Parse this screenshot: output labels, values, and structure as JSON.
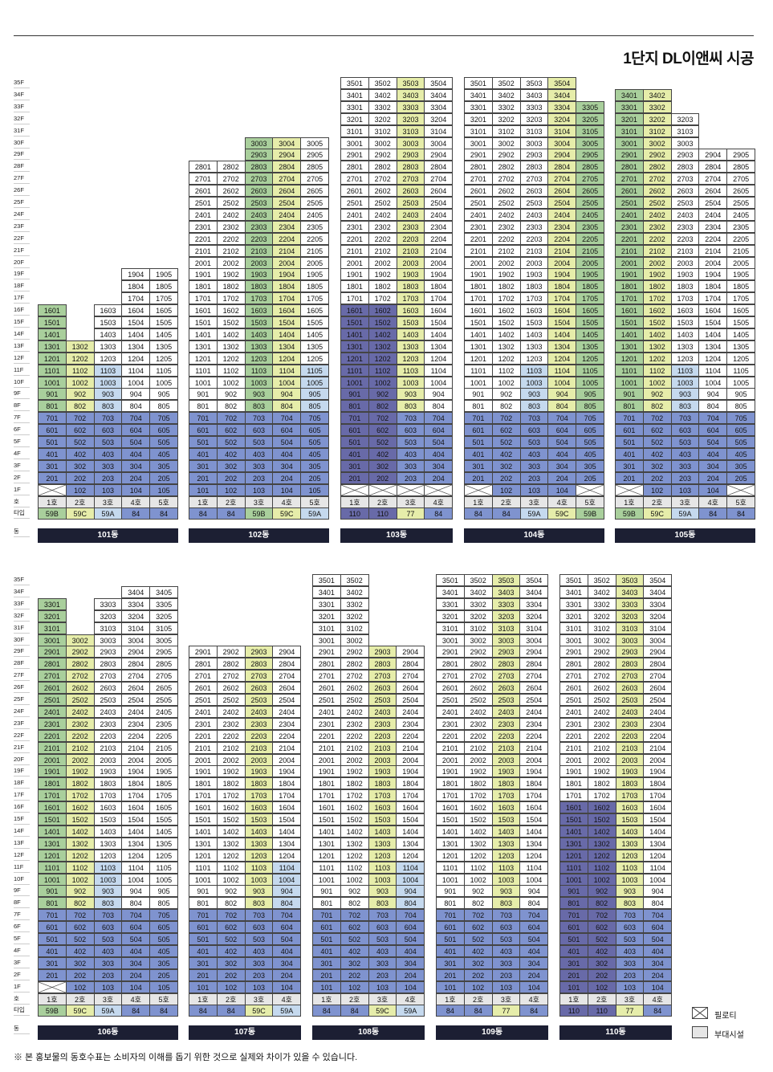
{
  "title": "1단지 DL이앤씨 시공",
  "floors_label": [
    "35F",
    "34F",
    "33F",
    "32F",
    "31F",
    "30F",
    "29F",
    "28F",
    "27F",
    "26F",
    "25F",
    "24F",
    "23F",
    "22F",
    "21F",
    "20F",
    "19F",
    "18F",
    "17F",
    "16F",
    "15F",
    "14F",
    "13F",
    "12F",
    "11F",
    "10F",
    "9F",
    "8F",
    "7F",
    "6F",
    "5F",
    "4F",
    "3F",
    "2F",
    "1F"
  ],
  "row_labels": {
    "ho": "호",
    "type": "타입",
    "dong": "동"
  },
  "sections": [
    {
      "name": "top",
      "buildings": [
        {
          "dong": "101동",
          "lines": 5,
          "lines_data": [
            {
              "ho": "1호",
              "type": "59B",
              "top": 16,
              "colors": {
                "default": "g",
                "1-7": "mb",
                "pil": [
                  1
                ]
              }
            },
            {
              "ho": "2호",
              "type": "59C",
              "top": 13,
              "colors": {
                "default": "w",
                "1-7": "mb"
              }
            },
            {
              "ho": "3호",
              "type": "59A",
              "top": 16,
              "colors": {
                "default": "w",
                "1-10": "lb"
              }
            },
            {
              "ho": "4호",
              "type": "84",
              "top": 19,
              "colors": {
                "default": "w",
                "1-7": "mb"
              }
            },
            {
              "ho": "5호",
              "type": "84",
              "top": 19,
              "colors": {
                "default": "w",
                "1-7": "mb"
              }
            }
          ],
          "dong_label": "101동"
        },
        {
          "dong": "102동",
          "dong_label": "102동"
        },
        {
          "dong": "103동",
          "dong_label": "103동"
        },
        {
          "dong": "104동",
          "dong_label": "104동"
        },
        {
          "dong": "105동",
          "dong_label": "105동"
        }
      ]
    },
    {
      "name": "bottom",
      "buildings": [
        {
          "dong_label": "106동"
        },
        {
          "dong_label": "107동"
        },
        {
          "dong_label": "108동"
        },
        {
          "dong_label": "109동"
        },
        {
          "dong_label": "110동"
        }
      ]
    }
  ],
  "buildings": [
    {
      "id": "101",
      "label": "101동",
      "ho": [
        "1호",
        "2호",
        "3호",
        "4호",
        "5호"
      ],
      "types": [
        "59B",
        "59C",
        "59A",
        "84",
        "84"
      ],
      "type_colors": [
        "g",
        "y",
        "lb",
        "mb",
        "mb"
      ],
      "tops": [
        16,
        13,
        16,
        19,
        19
      ],
      "pil": [
        1,
        0,
        0,
        0,
        0
      ],
      "mb_max": [
        7,
        7,
        7,
        7,
        7
      ],
      "mb_cols": [
        1,
        1,
        0,
        1,
        1
      ],
      "lb_cols": [
        0,
        0,
        1,
        0,
        0
      ],
      "lb_max": 10,
      "g_cols": [
        1,
        0,
        0,
        0,
        0
      ],
      "y_cols": [
        0,
        1,
        0,
        0,
        0
      ]
    },
    {
      "id": "102",
      "label": "102동",
      "ho": [
        "1호",
        "2호",
        "3호",
        "4호",
        "5호"
      ],
      "types": [
        "84",
        "84",
        "59B",
        "59C",
        "59A"
      ],
      "type_colors": [
        "mb",
        "mb",
        "g",
        "y",
        "lb"
      ],
      "tops": [
        28,
        28,
        30,
        30,
        30
      ],
      "pil": [
        0,
        0,
        0,
        0,
        0
      ]
    },
    {
      "id": "103",
      "label": "103동",
      "ho": [
        "1호",
        "2호",
        "3호",
        "4호"
      ],
      "types": [
        "110",
        "110",
        "77",
        "84"
      ],
      "type_colors": [
        "db",
        "db",
        "y",
        "mb"
      ],
      "tops": [
        35,
        35,
        35,
        35
      ],
      "pil": [
        1,
        1,
        1,
        1
      ]
    },
    {
      "id": "104",
      "label": "104동",
      "ho": [
        "1호",
        "2호",
        "3호",
        "4호",
        "5호"
      ],
      "types": [
        "84",
        "84",
        "59A",
        "59C",
        "59B"
      ],
      "type_colors": [
        "mb",
        "mb",
        "lb",
        "y",
        "g"
      ],
      "tops": [
        35,
        35,
        35,
        35,
        33
      ],
      "pil": [
        1,
        0,
        0,
        0,
        1
      ]
    },
    {
      "id": "105",
      "label": "105동",
      "ho": [
        "1호",
        "2호",
        "3호",
        "4호",
        "5호"
      ],
      "types": [
        "59B",
        "59C",
        "59A",
        "84",
        "84"
      ],
      "type_colors": [
        "g",
        "y",
        "lb",
        "mb",
        "mb"
      ],
      "tops": [
        34,
        34,
        32,
        29,
        29
      ],
      "pil": [
        1,
        0,
        0,
        0,
        1
      ]
    },
    {
      "id": "106",
      "label": "106동",
      "ho": [
        "1호",
        "2호",
        "3호",
        "4호",
        "5호"
      ],
      "types": [
        "59B",
        "59C",
        "59A",
        "84",
        "84"
      ],
      "type_colors": [
        "g",
        "y",
        "lb",
        "mb",
        "mb"
      ],
      "tops": [
        33,
        30,
        33,
        34,
        34
      ],
      "pil": [
        1,
        0,
        0,
        0,
        0
      ]
    },
    {
      "id": "107",
      "label": "107동",
      "ho": [
        "1호",
        "2호",
        "3호",
        "4호"
      ],
      "types": [
        "84",
        "84",
        "59C",
        "59A"
      ],
      "type_colors": [
        "mb",
        "mb",
        "y",
        "lb"
      ],
      "tops": [
        29,
        29,
        29,
        29
      ],
      "pil": [
        0,
        0,
        0,
        0
      ]
    },
    {
      "id": "108",
      "label": "108동",
      "ho": [
        "1호",
        "2호",
        "3호",
        "4호"
      ],
      "types": [
        "84",
        "84",
        "59C",
        "59A"
      ],
      "type_colors": [
        "mb",
        "mb",
        "y",
        "lb"
      ],
      "tops": [
        35,
        35,
        29,
        29
      ],
      "pil": [
        0,
        0,
        0,
        0
      ]
    },
    {
      "id": "109",
      "label": "109동",
      "ho": [
        "1호",
        "2호",
        "3호",
        "4호"
      ],
      "types": [
        "84",
        "84",
        "77",
        "84"
      ],
      "type_colors": [
        "mb",
        "mb",
        "y",
        "mb"
      ],
      "tops": [
        35,
        35,
        35,
        35
      ],
      "pil": [
        0,
        0,
        0,
        0
      ]
    },
    {
      "id": "110",
      "label": "110동",
      "ho": [
        "1호",
        "2호",
        "3호",
        "4호"
      ],
      "types": [
        "110",
        "110",
        "77",
        "84"
      ],
      "type_colors": [
        "db",
        "db",
        "y",
        "mb"
      ],
      "tops": [
        35,
        35,
        35,
        35
      ],
      "pil": [
        0,
        0,
        0,
        0
      ]
    }
  ],
  "legend": {
    "piloti": "필로티",
    "facility": "부대시설"
  },
  "footnote": "※ 본 홍보물의 동호수표는 소비자의 이해를 돕기 위한 것으로 실제와 차이가 있을 수 있습니다.",
  "colors": {
    "g": "#a9cf9c",
    "y": "#e6edaa",
    "lb": "#c5d9ee",
    "mb": "#7f93cf",
    "db": "#686aa8",
    "gr": "#e6e6e6",
    "dong_bar": "#1c1f33"
  }
}
